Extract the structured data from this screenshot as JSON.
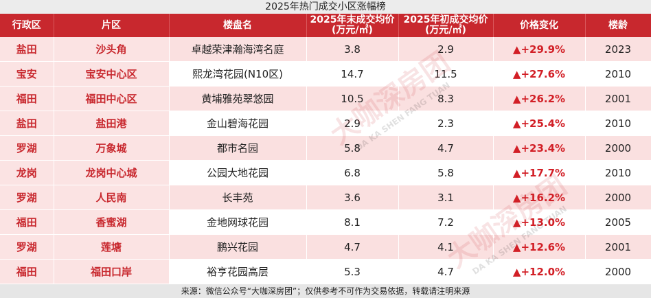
{
  "title": "2025年热门成交小区涨幅榜",
  "table": {
    "header": [
      "行政区",
      "片区",
      "楼盘名",
      "2025年末成交均价\n(万元/㎡)",
      "2025年初成交均价\n(万元/㎡)",
      "价格变化",
      "楼龄"
    ],
    "rows": [
      [
        "盐田",
        "沙头角",
        "卓越荣津瀚海湾名庭",
        "3.8",
        "2.9",
        "▲+29.9%",
        "2023"
      ],
      [
        "宝安",
        "宝安中心区",
        "熙龙湾花园(N10区)",
        "14.7",
        "11.5",
        "▲+27.6%",
        "2010"
      ],
      [
        "福田",
        "福田中心区",
        "黄埔雅苑翠悠园",
        "10.5",
        "8.3",
        "▲+26.2%",
        "2001"
      ],
      [
        "盐田",
        "盐田港",
        "金山碧海花园",
        "2.9",
        "2.3",
        "▲+25.4%",
        "2010"
      ],
      [
        "罗湖",
        "万象城",
        "都市名园",
        "5.8",
        "4.7",
        "▲+23.4%",
        "2000"
      ],
      [
        "龙岗",
        "龙岗中心城",
        "公园大地花园",
        "6.8",
        "5.8",
        "▲+17.7%",
        "2010"
      ],
      [
        "罗湖",
        "人民南",
        "长丰苑",
        "3.6",
        "3.1",
        "▲+16.2%",
        "2000"
      ],
      [
        "福田",
        "香蜜湖",
        "金地网球花园",
        "8.1",
        "7.2",
        "▲+13.0%",
        "2005"
      ],
      [
        "罗湖",
        "莲塘",
        "鹏兴花园",
        "4.7",
        "4.1",
        "▲+12.6%",
        "2001"
      ],
      [
        "福田",
        "福田口岸",
        "裕亨花园高层",
        "5.3",
        "4.7",
        "▲+12.0%",
        "2000"
      ]
    ]
  },
  "watermark": {
    "brand": "大咖深房团",
    "pinyin": "DA KA SHEN FANG TUAN"
  },
  "footer": "来源：微信公众号“大咖深房团”；仅供参考不可作为交易依据，转载请注明来源"
}
